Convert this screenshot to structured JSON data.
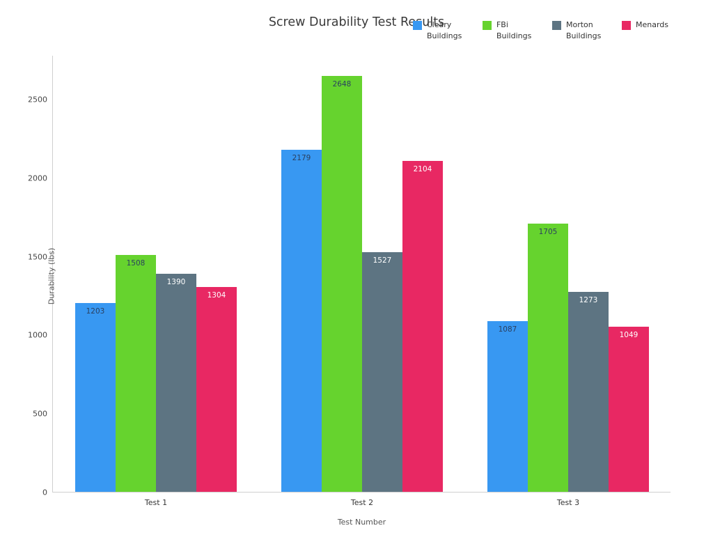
{
  "title": "Screw Durability Test Results",
  "chart_data": {
    "type": "bar",
    "categories": [
      "Test 1",
      "Test 2",
      "Test 3"
    ],
    "series": [
      {
        "name": "Cleary Buildings",
        "color": "#3898f2",
        "label_color": "#2a3f5f",
        "values": [
          1203,
          2179,
          1087
        ]
      },
      {
        "name": "FBi Buildings",
        "color": "#66d32e",
        "label_color": "#2a3f5f",
        "values": [
          1508,
          2648,
          1705
        ]
      },
      {
        "name": "Morton Buildings",
        "color": "#5d7482",
        "label_color": "#ffffff",
        "values": [
          1390,
          1527,
          1273
        ]
      },
      {
        "name": "Menards",
        "color": "#e82863",
        "label_color": "#ffffff",
        "values": [
          1304,
          2104,
          1049
        ]
      }
    ],
    "title": "Screw Durability Test Results",
    "xlabel": "Test Number",
    "ylabel": "Durability (lbs)",
    "yticks": [
      0,
      500,
      1000,
      1500,
      2000,
      2500
    ],
    "ylim": [
      0,
      2780
    ],
    "legend_position": "top-right",
    "grid": false
  }
}
